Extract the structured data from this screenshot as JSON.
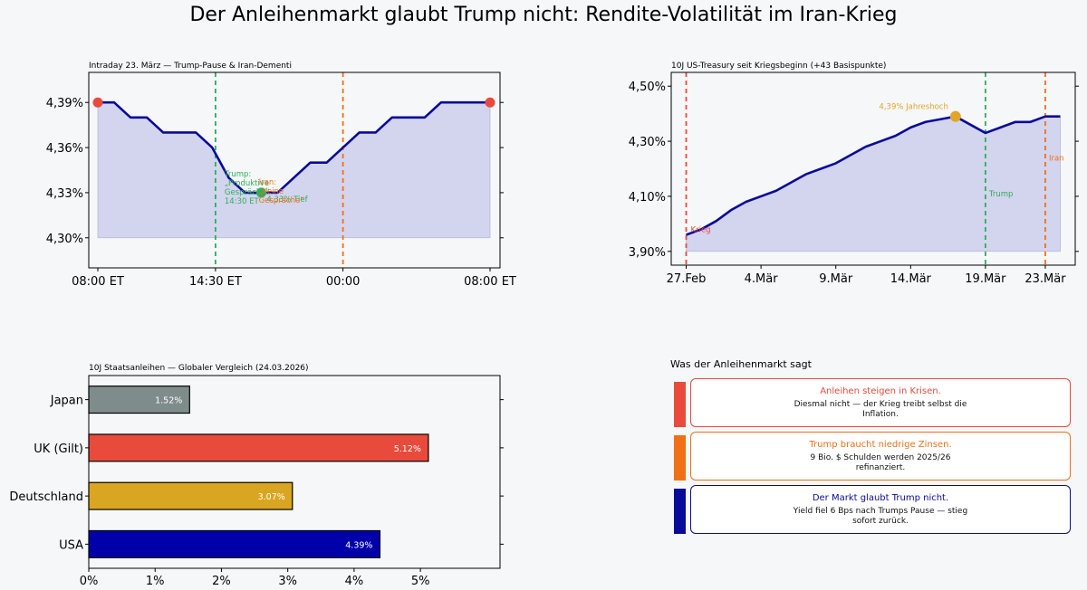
{
  "title": "Der Anleihenmarkt glaubt Trump nicht: Rendite-Volatilität im Iran-Krieg",
  "colors": {
    "navy": "#0a0a9a",
    "fill": "#d3d4ee",
    "red": "#e84a3c",
    "green": "#2fae5a",
    "orange": "#f07018",
    "gold": "#e0a52a",
    "grey": "#7f8c8c",
    "japan": "#7f8c8c",
    "uk": "#e84a3c",
    "germany": "#daa520",
    "usa": "#0000aa"
  },
  "chart_data": [
    {
      "type": "line",
      "title": "Intraday 23. März — Trump-Pause & Iran-Dementi",
      "x_tick_labels": [
        "08:00 ET",
        "14:30 ET",
        "00:00",
        "08:00 ET"
      ],
      "y_tick_labels": [
        "4,30%",
        "4,33%",
        "4,36%",
        "4,39%"
      ],
      "y_ticks": [
        4.3,
        4.33,
        4.36,
        4.39
      ],
      "ylim": [
        4.28,
        4.41
      ],
      "y": [
        4.39,
        4.39,
        4.38,
        4.38,
        4.37,
        4.37,
        4.37,
        4.36,
        4.34,
        4.33,
        4.33,
        4.33,
        4.34,
        4.35,
        4.35,
        4.36,
        4.37,
        4.37,
        4.38,
        4.38,
        4.38,
        4.39,
        4.39,
        4.39,
        4.39
      ],
      "fill_baseline": 4.3,
      "markers": [
        {
          "index": 0,
          "color": "red"
        },
        {
          "index": 24,
          "color": "red"
        },
        {
          "index": 10,
          "color": "green"
        }
      ],
      "annotations": {
        "low_label": "4,33% Tief",
        "trump_lines": [
          "Trump:",
          "„Produktive",
          "Gespräche\"",
          "14:30 ET"
        ],
        "iran_lines": [
          "Iran:",
          "„Keine",
          "Gespräche\""
        ]
      },
      "grid": false
    },
    {
      "type": "line",
      "title": "10J US-Treasury seit Kriegsbeginn (+43 Basispunkte)",
      "x_tick_labels": [
        "27.Feb",
        "4.Mär",
        "9.Mär",
        "14.Mär",
        "19.Mär",
        "23.Mär"
      ],
      "x_tick_days": [
        0,
        5,
        10,
        15,
        20,
        24
      ],
      "y_tick_labels": [
        "3,90%",
        "4,10%",
        "4,30%",
        "4,50%"
      ],
      "y_ticks": [
        3.9,
        4.1,
        4.3,
        4.5
      ],
      "xlim": [
        -1,
        26
      ],
      "ylim": [
        3.85,
        4.55
      ],
      "x_days": [
        0,
        1,
        2,
        3,
        4,
        5,
        6,
        7,
        8,
        9,
        10,
        11,
        12,
        13,
        14,
        15,
        16,
        17,
        18,
        19,
        20,
        21,
        22,
        23,
        24,
        25
      ],
      "y": [
        3.96,
        3.98,
        4.01,
        4.05,
        4.08,
        4.1,
        4.12,
        4.15,
        4.18,
        4.2,
        4.22,
        4.25,
        4.28,
        4.3,
        4.32,
        4.35,
        4.37,
        4.38,
        4.39,
        4.36,
        4.33,
        4.35,
        4.37,
        4.37,
        4.39,
        4.39
      ],
      "fill_baseline": 3.9,
      "high_marker_index": 18,
      "annotations": {
        "high_label": "4,39% Jahreshoch",
        "krieg_label": "Krieg",
        "trump_label": "Trump",
        "iran_label": "Iran"
      },
      "grid": false
    },
    {
      "type": "bar",
      "orientation": "horizontal",
      "title": "10J Staatsanleihen — Globaler Vergleich (24.03.2026)",
      "categories": [
        "Japan",
        "UK (Gilt)",
        "Deutschland",
        "USA"
      ],
      "values": [
        1.52,
        5.12,
        3.07,
        4.39
      ],
      "value_labels": [
        "1.52%",
        "5.12%",
        "3.07%",
        "4.39%"
      ],
      "x_tick_labels": [
        "0%",
        "1%",
        "2%",
        "3%",
        "4%",
        "5%"
      ],
      "x_ticks": [
        0,
        1,
        2,
        3,
        4,
        5
      ],
      "xlim": [
        0,
        6.2
      ],
      "grid": false
    }
  ],
  "messages": {
    "title": "Was der Anleihenmarkt sagt",
    "items": [
      {
        "head": "Anleihen steigen in Krisen.",
        "body": "Diesmal nicht — der Krieg treibt selbst die Inflation.",
        "color": "#e84a3c",
        "head_color": "#e84a3c"
      },
      {
        "head": "Trump braucht niedrige Zinsen.",
        "body": "9 Bio. $ Schulden werden 2025/26 refinanziert.",
        "color": "#f07018",
        "head_color": "#f07018"
      },
      {
        "head": "Der Markt glaubt Trump nicht.",
        "body": "Yield fiel 6 Bps nach Trumps Pause — stieg sofort zurück.",
        "color": "#0a0a9a",
        "head_color": "#0a0a9a"
      }
    ]
  }
}
